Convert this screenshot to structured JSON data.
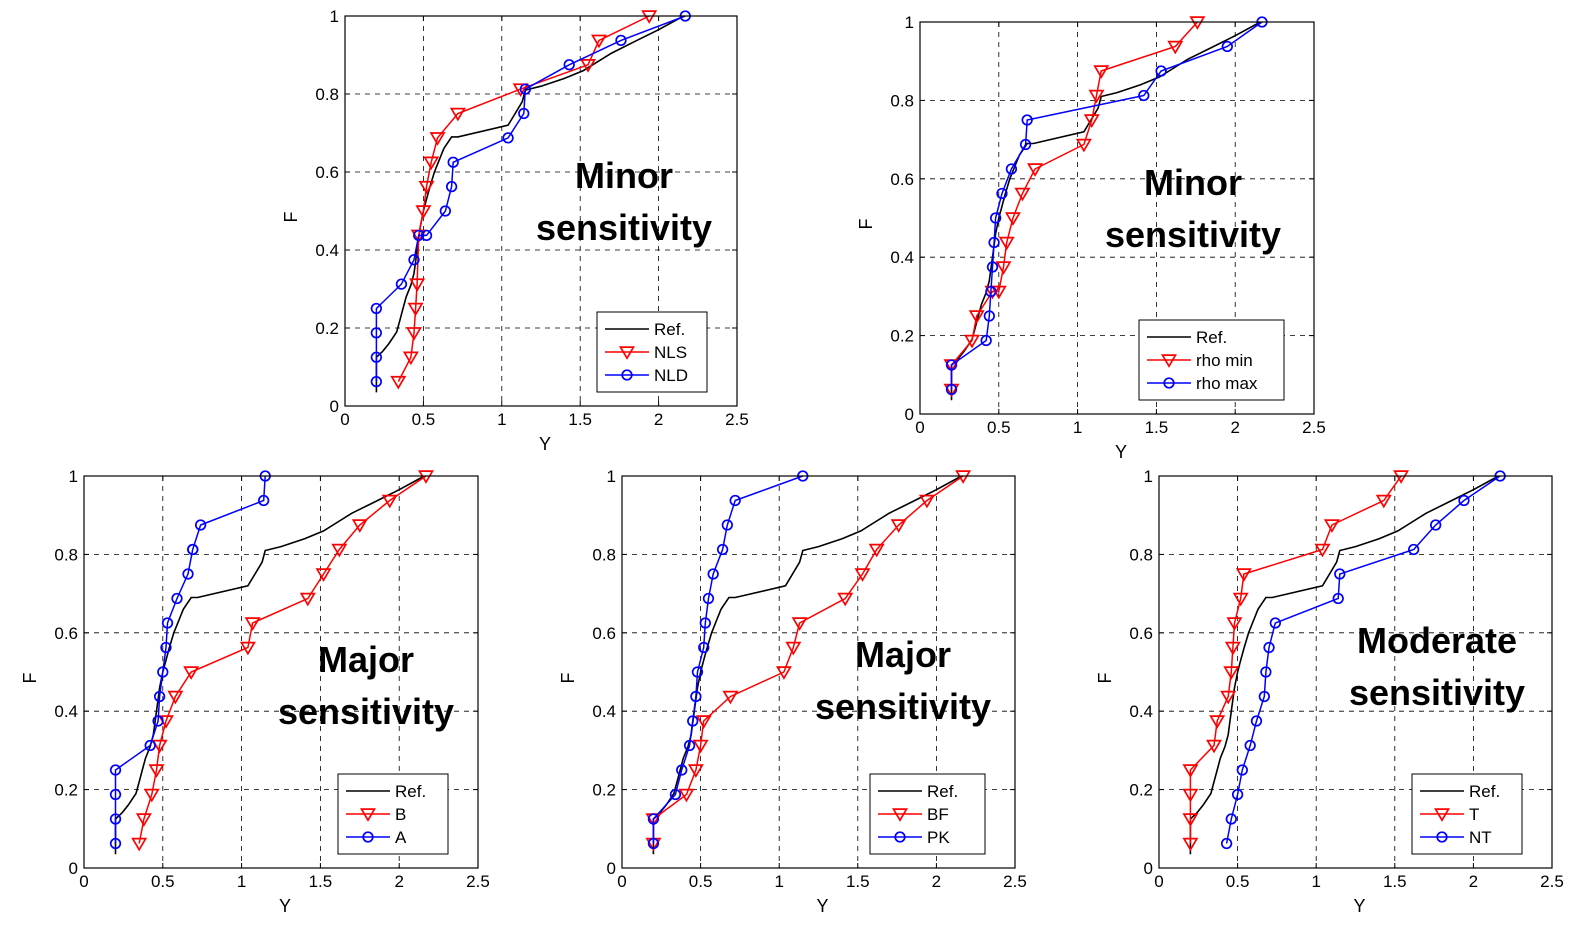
{
  "figure": {
    "background": "#ffffff",
    "colors": {
      "reference": "#000000",
      "series_a": "#ff0000",
      "series_b": "#0000ff",
      "grid": "#000000"
    }
  },
  "chart_data": [
    {
      "type": "line",
      "title": "",
      "xlabel": "Y",
      "ylabel": "F",
      "xlim": [
        0,
        2.5
      ],
      "ylim": [
        0,
        1
      ],
      "xticks": [
        "0",
        "0.5",
        "1",
        "1.5",
        "2",
        "2.5"
      ],
      "yticks": [
        "0",
        "0.2",
        "0.4",
        "0.6",
        "0.8",
        "1"
      ],
      "grid": true,
      "annotation": [
        "Minor",
        "sensitivity"
      ],
      "legend_position": "bottom-right",
      "series": [
        {
          "name": "Ref.",
          "color": "#000000",
          "marker": "none",
          "x": [
            0.2,
            0.2,
            0.2,
            0.2,
            0.24,
            0.28,
            0.33,
            0.35,
            0.37,
            0.39,
            0.42,
            0.44,
            0.45,
            0.46,
            0.47,
            0.48,
            0.5,
            0.52,
            0.54,
            0.57,
            0.6,
            0.63,
            0.68,
            0.72,
            1.04,
            1.13,
            1.15,
            1.25,
            1.4,
            1.52,
            1.6,
            1.7,
            1.85,
            2.0,
            2.16
          ],
          "y": [
            0.035,
            0.0625,
            0.09,
            0.125,
            0.14,
            0.16,
            0.19,
            0.22,
            0.25,
            0.28,
            0.31,
            0.34,
            0.37,
            0.4,
            0.43,
            0.46,
            0.5,
            0.53,
            0.56,
            0.6,
            0.63,
            0.66,
            0.69,
            0.69,
            0.72,
            0.78,
            0.81,
            0.82,
            0.84,
            0.86,
            0.88,
            0.905,
            0.935,
            0.965,
            1.0
          ]
        },
        {
          "name": "NLS",
          "color": "#ff0000",
          "marker": "triangle-down",
          "x": [
            0.34,
            0.42,
            0.44,
            0.45,
            0.46,
            0.47,
            0.5,
            0.52,
            0.55,
            0.59,
            0.72,
            1.12,
            1.55,
            1.62,
            1.94
          ],
          "y": [
            0.0625,
            0.125,
            0.1875,
            0.25,
            0.3125,
            0.4375,
            0.5,
            0.5625,
            0.625,
            0.6875,
            0.75,
            0.8125,
            0.875,
            0.9375,
            1.0
          ]
        },
        {
          "name": "NLD",
          "color": "#0000ff",
          "marker": "circle",
          "x": [
            0.2,
            0.2,
            0.2,
            0.2,
            0.36,
            0.44,
            0.47,
            0.52,
            0.64,
            0.68,
            0.69,
            1.04,
            1.14,
            1.15,
            1.43,
            1.76,
            2.17
          ],
          "y": [
            0.0625,
            0.125,
            0.1875,
            0.25,
            0.3125,
            0.375,
            0.4375,
            0.4375,
            0.5,
            0.5625,
            0.625,
            0.6875,
            0.75,
            0.8125,
            0.875,
            0.9375,
            1.0
          ]
        }
      ]
    },
    {
      "type": "line",
      "title": "",
      "xlabel": "Y",
      "ylabel": "F",
      "xlim": [
        0,
        2.5
      ],
      "ylim": [
        0,
        1
      ],
      "xticks": [
        "0",
        "0.5",
        "1",
        "1.5",
        "2",
        "2.5"
      ],
      "yticks": [
        "0",
        "0.2",
        "0.4",
        "0.6",
        "0.8",
        "1"
      ],
      "grid": true,
      "annotation": [
        "Minor",
        "sensitivity"
      ],
      "legend_position": "bottom-right",
      "series": [
        {
          "name": "Ref.",
          "color": "#000000",
          "marker": "none",
          "x": [
            0.2,
            0.2,
            0.2,
            0.2,
            0.24,
            0.28,
            0.33,
            0.35,
            0.37,
            0.39,
            0.42,
            0.44,
            0.45,
            0.46,
            0.47,
            0.48,
            0.5,
            0.52,
            0.54,
            0.57,
            0.6,
            0.63,
            0.68,
            0.72,
            1.04,
            1.13,
            1.15,
            1.25,
            1.4,
            1.52,
            1.6,
            1.7,
            1.85,
            2.0,
            2.16
          ],
          "y": [
            0.035,
            0.0625,
            0.09,
            0.125,
            0.14,
            0.16,
            0.19,
            0.22,
            0.25,
            0.28,
            0.31,
            0.34,
            0.37,
            0.4,
            0.43,
            0.46,
            0.5,
            0.53,
            0.56,
            0.6,
            0.63,
            0.66,
            0.69,
            0.69,
            0.72,
            0.78,
            0.81,
            0.82,
            0.84,
            0.86,
            0.88,
            0.905,
            0.935,
            0.965,
            1.0
          ]
        },
        {
          "name": "rho min",
          "color": "#ff0000",
          "marker": "triangle-down",
          "x": [
            0.2,
            0.2,
            0.33,
            0.36,
            0.46,
            0.5,
            0.53,
            0.55,
            0.59,
            0.65,
            0.73,
            1.04,
            1.09,
            1.12,
            1.15,
            1.62,
            1.76
          ],
          "y": [
            0.0625,
            0.125,
            0.1875,
            0.25,
            0.3125,
            0.3125,
            0.375,
            0.4375,
            0.5,
            0.5625,
            0.625,
            0.6875,
            0.75,
            0.8125,
            0.875,
            0.9375,
            1.0
          ]
        },
        {
          "name": "rho max",
          "color": "#0000ff",
          "marker": "circle",
          "x": [
            0.2,
            0.2,
            0.42,
            0.44,
            0.45,
            0.46,
            0.47,
            0.48,
            0.52,
            0.58,
            0.67,
            0.68,
            1.42,
            1.53,
            1.95,
            2.17
          ],
          "y": [
            0.0625,
            0.125,
            0.1875,
            0.25,
            0.3125,
            0.375,
            0.4375,
            0.5,
            0.5625,
            0.625,
            0.6875,
            0.75,
            0.8125,
            0.875,
            0.9375,
            1.0
          ]
        }
      ]
    },
    {
      "type": "line",
      "title": "",
      "xlabel": "Y",
      "ylabel": "F",
      "xlim": [
        0,
        2.5
      ],
      "ylim": [
        0,
        1
      ],
      "xticks": [
        "0",
        "0.5",
        "1",
        "1.5",
        "2",
        "2.5"
      ],
      "yticks": [
        "0",
        "0.2",
        "0.4",
        "0.6",
        "0.8",
        "1"
      ],
      "grid": true,
      "annotation": [
        "Major",
        "sensitivity"
      ],
      "legend_position": "bottom-right",
      "series": [
        {
          "name": "Ref.",
          "color": "#000000",
          "marker": "none",
          "x": [
            0.2,
            0.2,
            0.2,
            0.2,
            0.24,
            0.28,
            0.33,
            0.35,
            0.37,
            0.39,
            0.42,
            0.44,
            0.45,
            0.46,
            0.47,
            0.48,
            0.5,
            0.52,
            0.54,
            0.57,
            0.6,
            0.63,
            0.68,
            0.72,
            1.04,
            1.13,
            1.15,
            1.25,
            1.4,
            1.52,
            1.6,
            1.7,
            1.85,
            2.0,
            2.16
          ],
          "y": [
            0.035,
            0.0625,
            0.09,
            0.125,
            0.14,
            0.16,
            0.19,
            0.22,
            0.25,
            0.28,
            0.31,
            0.34,
            0.37,
            0.4,
            0.43,
            0.46,
            0.5,
            0.53,
            0.56,
            0.6,
            0.63,
            0.66,
            0.69,
            0.69,
            0.72,
            0.78,
            0.81,
            0.82,
            0.84,
            0.86,
            0.88,
            0.905,
            0.935,
            0.965,
            1.0
          ]
        },
        {
          "name": "B",
          "color": "#ff0000",
          "marker": "triangle-down",
          "x": [
            0.35,
            0.38,
            0.43,
            0.46,
            0.48,
            0.52,
            0.58,
            0.68,
            1.04,
            1.07,
            1.42,
            1.52,
            1.62,
            1.75,
            1.94,
            2.17
          ],
          "y": [
            0.0625,
            0.125,
            0.1875,
            0.25,
            0.3125,
            0.375,
            0.4375,
            0.5,
            0.5625,
            0.625,
            0.6875,
            0.75,
            0.8125,
            0.875,
            0.9375,
            1.0
          ]
        },
        {
          "name": "A",
          "color": "#0000ff",
          "marker": "circle",
          "x": [
            0.2,
            0.2,
            0.2,
            0.2,
            0.42,
            0.47,
            0.48,
            0.5,
            0.52,
            0.53,
            0.59,
            0.66,
            0.69,
            0.69,
            0.74,
            1.14,
            1.15
          ],
          "y": [
            0.0625,
            0.125,
            0.1875,
            0.25,
            0.3125,
            0.375,
            0.4375,
            0.5,
            0.5625,
            0.625,
            0.6875,
            0.75,
            0.8125,
            0.8125,
            0.875,
            0.9375,
            1.0
          ]
        }
      ]
    },
    {
      "type": "line",
      "title": "",
      "xlabel": "Y",
      "ylabel": "F",
      "xlim": [
        0,
        2.5
      ],
      "ylim": [
        0,
        1
      ],
      "xticks": [
        "0",
        "0.5",
        "1",
        "1.5",
        "2",
        "2.5"
      ],
      "yticks": [
        "0",
        "0.2",
        "0.4",
        "0.6",
        "0.8",
        "1"
      ],
      "grid": true,
      "annotation": [
        "Major",
        "sensitivity"
      ],
      "legend_position": "bottom-right",
      "series": [
        {
          "name": "Ref.",
          "color": "#000000",
          "marker": "none",
          "x": [
            0.2,
            0.2,
            0.2,
            0.2,
            0.24,
            0.28,
            0.33,
            0.35,
            0.37,
            0.39,
            0.42,
            0.44,
            0.45,
            0.46,
            0.47,
            0.48,
            0.5,
            0.52,
            0.54,
            0.57,
            0.6,
            0.63,
            0.68,
            0.72,
            1.04,
            1.13,
            1.15,
            1.25,
            1.4,
            1.52,
            1.6,
            1.7,
            1.85,
            2.0,
            2.16
          ],
          "y": [
            0.035,
            0.0625,
            0.09,
            0.125,
            0.14,
            0.16,
            0.19,
            0.22,
            0.25,
            0.28,
            0.31,
            0.34,
            0.37,
            0.4,
            0.43,
            0.46,
            0.5,
            0.53,
            0.56,
            0.6,
            0.63,
            0.66,
            0.69,
            0.69,
            0.72,
            0.78,
            0.81,
            0.82,
            0.84,
            0.86,
            0.88,
            0.905,
            0.935,
            0.965,
            1.0
          ]
        },
        {
          "name": "BF",
          "color": "#ff0000",
          "marker": "triangle-down",
          "x": [
            0.2,
            0.2,
            0.41,
            0.47,
            0.5,
            0.52,
            0.69,
            1.03,
            1.09,
            1.13,
            1.42,
            1.53,
            1.62,
            1.76,
            1.94,
            2.17
          ],
          "y": [
            0.0625,
            0.125,
            0.1875,
            0.25,
            0.3125,
            0.375,
            0.4375,
            0.5,
            0.5625,
            0.625,
            0.6875,
            0.75,
            0.8125,
            0.875,
            0.9375,
            1.0
          ]
        },
        {
          "name": "PK",
          "color": "#0000ff",
          "marker": "circle",
          "x": [
            0.2,
            0.2,
            0.34,
            0.38,
            0.43,
            0.45,
            0.47,
            0.48,
            0.52,
            0.53,
            0.55,
            0.58,
            0.64,
            0.67,
            0.72,
            1.15
          ],
          "y": [
            0.0625,
            0.125,
            0.1875,
            0.25,
            0.3125,
            0.375,
            0.4375,
            0.5,
            0.5625,
            0.625,
            0.6875,
            0.75,
            0.8125,
            0.875,
            0.9375,
            1.0
          ]
        }
      ]
    },
    {
      "type": "line",
      "title": "",
      "xlabel": "Y",
      "ylabel": "F",
      "xlim": [
        0,
        2.5
      ],
      "ylim": [
        0,
        1
      ],
      "xticks": [
        "0",
        "0.5",
        "1",
        "1.5",
        "2",
        "2.5"
      ],
      "yticks": [
        "0",
        "0.2",
        "0.4",
        "0.6",
        "0.8",
        "1"
      ],
      "grid": true,
      "annotation": [
        "Moderate",
        "sensitivity"
      ],
      "legend_position": "bottom-right",
      "series": [
        {
          "name": "Ref.",
          "color": "#000000",
          "marker": "none",
          "x": [
            0.2,
            0.2,
            0.2,
            0.2,
            0.24,
            0.28,
            0.33,
            0.35,
            0.37,
            0.39,
            0.42,
            0.44,
            0.45,
            0.46,
            0.47,
            0.48,
            0.5,
            0.52,
            0.54,
            0.57,
            0.6,
            0.63,
            0.68,
            0.72,
            1.04,
            1.13,
            1.15,
            1.25,
            1.4,
            1.52,
            1.6,
            1.7,
            1.85,
            2.0,
            2.16
          ],
          "y": [
            0.035,
            0.0625,
            0.09,
            0.125,
            0.14,
            0.16,
            0.19,
            0.22,
            0.25,
            0.28,
            0.31,
            0.34,
            0.37,
            0.4,
            0.43,
            0.46,
            0.5,
            0.53,
            0.56,
            0.6,
            0.63,
            0.66,
            0.69,
            0.69,
            0.72,
            0.78,
            0.81,
            0.82,
            0.84,
            0.86,
            0.88,
            0.905,
            0.935,
            0.965,
            1.0
          ]
        },
        {
          "name": "T",
          "color": "#ff0000",
          "marker": "triangle-down",
          "x": [
            0.2,
            0.2,
            0.2,
            0.2,
            0.35,
            0.37,
            0.44,
            0.46,
            0.47,
            0.48,
            0.52,
            0.54,
            1.04,
            1.1,
            1.43,
            1.54
          ],
          "y": [
            0.0625,
            0.125,
            0.1875,
            0.25,
            0.3125,
            0.375,
            0.4375,
            0.5,
            0.5625,
            0.625,
            0.6875,
            0.75,
            0.8125,
            0.875,
            0.9375,
            1.0
          ]
        },
        {
          "name": "NT",
          "color": "#0000ff",
          "marker": "circle",
          "x": [
            0.43,
            0.46,
            0.5,
            0.53,
            0.58,
            0.62,
            0.67,
            0.68,
            0.7,
            0.74,
            1.14,
            1.15,
            1.62,
            1.76,
            1.94,
            2.17
          ],
          "y": [
            0.0625,
            0.125,
            0.1875,
            0.25,
            0.3125,
            0.375,
            0.4375,
            0.5,
            0.5625,
            0.625,
            0.6875,
            0.75,
            0.8125,
            0.875,
            0.9375,
            1.0
          ]
        }
      ]
    }
  ]
}
